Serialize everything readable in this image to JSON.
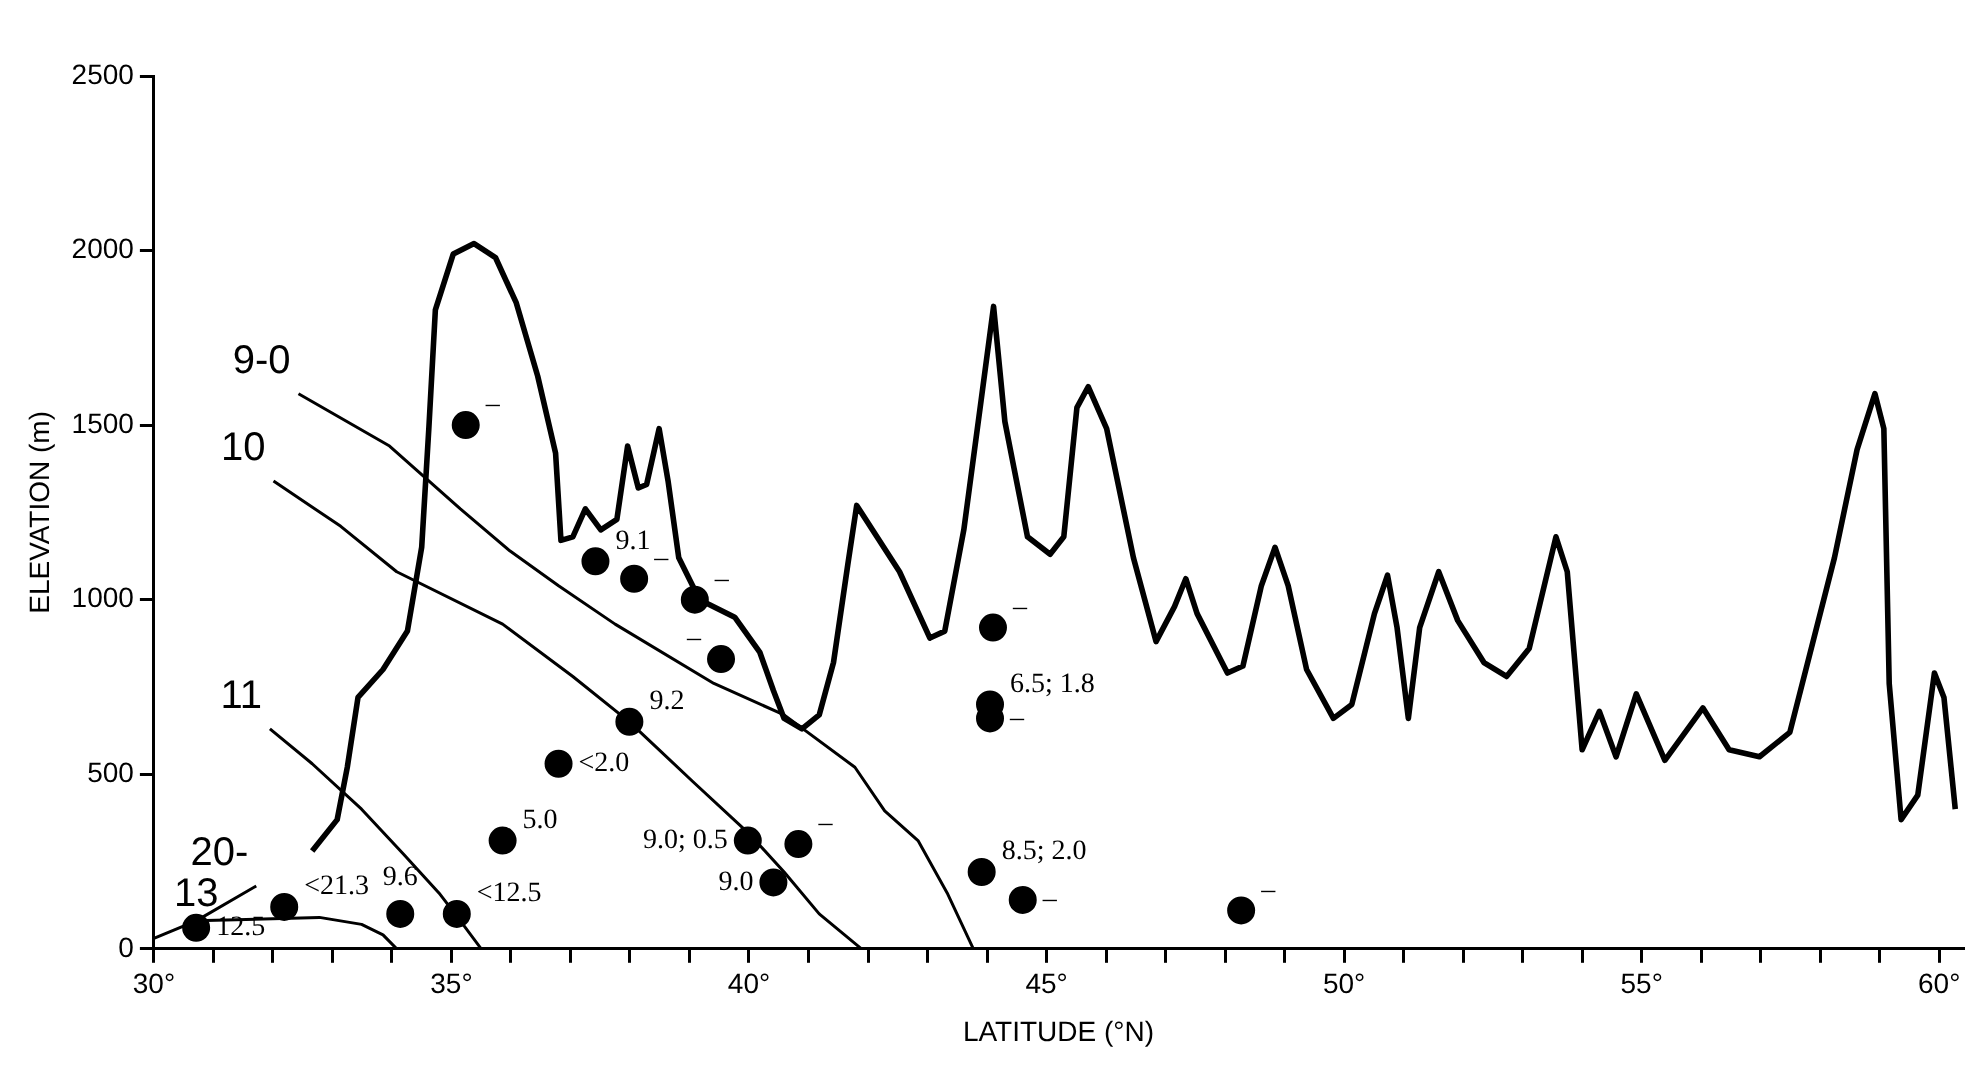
{
  "chart_data": {
    "type": "line",
    "xlabel": "LATITUDE (°N)",
    "ylabel": "ELEVATION (m)",
    "xlim": [
      30,
      60.4
    ],
    "xticks": [
      {
        "value": 30,
        "label": "30°"
      },
      {
        "value": 31,
        "label": null
      },
      {
        "value": 32,
        "label": null
      },
      {
        "value": 33,
        "label": null
      },
      {
        "value": 34,
        "label": null
      },
      {
        "value": 35,
        "label": "35°"
      },
      {
        "value": 36,
        "label": null
      },
      {
        "value": 37,
        "label": null
      },
      {
        "value": 38,
        "label": null
      },
      {
        "value": 39,
        "label": null
      },
      {
        "value": 40,
        "label": "40°"
      },
      {
        "value": 41,
        "label": null
      },
      {
        "value": 42,
        "label": null
      },
      {
        "value": 43,
        "label": null
      },
      {
        "value": 44,
        "label": null
      },
      {
        "value": 45,
        "label": "45°"
      },
      {
        "value": 46,
        "label": null
      },
      {
        "value": 47,
        "label": null
      },
      {
        "value": 48,
        "label": null
      },
      {
        "value": 49,
        "label": null
      },
      {
        "value": 50,
        "label": "50°"
      },
      {
        "value": 51,
        "label": null
      },
      {
        "value": 52,
        "label": null
      },
      {
        "value": 53,
        "label": null
      },
      {
        "value": 54,
        "label": null
      },
      {
        "value": 55,
        "label": "55°"
      },
      {
        "value": 56,
        "label": null
      },
      {
        "value": 57,
        "label": null
      },
      {
        "value": 58,
        "label": null
      },
      {
        "value": 59,
        "label": null
      },
      {
        "value": 60,
        "label": "60°"
      }
    ],
    "ylim": [
      0,
      2500
    ],
    "yticks": [
      0,
      500,
      1000,
      1500,
      2000,
      2500
    ],
    "grid": false,
    "legend": false,
    "series": [
      {
        "color": "#000000",
        "x": [
          32.66,
          33.08,
          33.25,
          33.43,
          33.85,
          34.26,
          34.5,
          34.62,
          34.73,
          35.03,
          35.38,
          35.74,
          36.09,
          36.45,
          36.75,
          36.84,
          37.04,
          37.25,
          37.51,
          37.78,
          37.96,
          38.14,
          38.28,
          38.49,
          38.64,
          38.82,
          39.17,
          39.76,
          40.18,
          40.41,
          40.59,
          40.89,
          41.18,
          41.42,
          41.66,
          41.81,
          42.53,
          43.04,
          43.29,
          43.61,
          43.9,
          44.11,
          44.3,
          44.68,
          45.06,
          45.29,
          45.51,
          45.7,
          46.01,
          46.46,
          46.84,
          47.15,
          47.34,
          47.53,
          48.04,
          48.3,
          48.61,
          48.84,
          49.06,
          49.37,
          49.82,
          50.13,
          50.51,
          50.73,
          50.89,
          51.08,
          51.27,
          51.59,
          51.91,
          52.35,
          52.73,
          53.11,
          53.56,
          53.75,
          54.0,
          54.29,
          54.57,
          54.91,
          55.39,
          56.03,
          56.47,
          56.98,
          57.49,
          58.24,
          58.62,
          58.92,
          59.07,
          59.16,
          59.36,
          59.64,
          59.92,
          60.08,
          60.27
        ],
        "values": [
          280,
          370,
          520,
          720,
          800,
          910,
          1150,
          1490,
          1830,
          1990,
          2020,
          1980,
          1850,
          1640,
          1420,
          1170,
          1180,
          1260,
          1200,
          1230,
          1440,
          1320,
          1330,
          1490,
          1340,
          1120,
          1000,
          950,
          850,
          740,
          660,
          630,
          670,
          820,
          1100,
          1270,
          1080,
          890,
          910,
          1200,
          1570,
          1840,
          1510,
          1180,
          1130,
          1180,
          1550,
          1610,
          1490,
          1120,
          880,
          980,
          1060,
          960,
          790,
          810,
          1040,
          1150,
          1040,
          800,
          660,
          700,
          960,
          1070,
          920,
          660,
          920,
          1080,
          940,
          820,
          780,
          860,
          1180,
          1080,
          570,
          680,
          550,
          730,
          540,
          690,
          570,
          550,
          620,
          1120,
          1430,
          1590,
          1490,
          760,
          370,
          440,
          790,
          720,
          400
        ]
      },
      {
        "name": "9-0",
        "color": "#000000",
        "x": [
          32.43,
          33.96,
          35.15,
          35.98,
          36.8,
          37.75,
          39.41,
          40.59,
          41.78,
          42.28,
          42.84,
          43.33,
          43.77
        ],
        "values": [
          1590,
          1440,
          1260,
          1140,
          1040,
          930,
          760,
          670,
          520,
          395,
          310,
          160,
          0
        ]
      },
      {
        "name": "10",
        "color": "#000000",
        "x": [
          32.01,
          33.14,
          34.08,
          35.86,
          37.04,
          37.99,
          39.05,
          40.0,
          40.59,
          41.18,
          41.89
        ],
        "values": [
          1340,
          1210,
          1080,
          930,
          780,
          650,
          480,
          330,
          220,
          100,
          0
        ]
      },
      {
        "name": "11",
        "color": "#000000",
        "x": [
          31.95,
          32.66,
          33.49,
          34.2,
          34.79,
          35.15,
          35.5
        ],
        "values": [
          630,
          530,
          400,
          270,
          160,
          80,
          0
        ]
      },
      {
        "name": "20-",
        "color": "#000000",
        "x": [
          31.72,
          30.71,
          30.0
        ],
        "values": [
          180,
          80,
          30
        ]
      },
      {
        "name": "13",
        "color": "#000000",
        "x": [
          30.71,
          32.78,
          33.49,
          33.85,
          34.08
        ],
        "values": [
          80,
          90,
          70,
          40,
          0
        ]
      },
      {
        "type": "scatter",
        "marker": "circle",
        "color": "#000000",
        "x": [
          30.71,
          32.19,
          34.14,
          35.09,
          35.86,
          36.8,
          37.99,
          39.98,
          40.83,
          40.41,
          35.24,
          37.42,
          38.07,
          39.09,
          39.53,
          44.05,
          44.05,
          44.1,
          43.91,
          44.6,
          48.27
        ],
        "values": [
          60,
          120,
          100,
          100,
          310,
          530,
          650,
          310,
          300,
          190,
          1500,
          1110,
          1060,
          1000,
          830,
          700,
          660,
          920,
          220,
          140,
          110
        ]
      }
    ],
    "annotations": [
      {
        "text": "12.5",
        "x": 30.71,
        "y": 60
      },
      {
        "text": "<21.3",
        "x": 32.19,
        "y": 120
      },
      {
        "text": "9.6",
        "x": 34.14,
        "y": 100
      },
      {
        "text": "<12.5",
        "x": 35.09,
        "y": 100
      },
      {
        "text": "5.0",
        "x": 35.86,
        "y": 310
      },
      {
        "text": "<2.0",
        "x": 36.8,
        "y": 530
      },
      {
        "text": "9.2",
        "x": 37.99,
        "y": 650
      },
      {
        "text": "9.0; 0.5",
        "x": 39.98,
        "y": 310
      },
      {
        "text": "–",
        "x": 40.83,
        "y": 300
      },
      {
        "text": "9.0",
        "x": 40.41,
        "y": 190
      },
      {
        "text": "–",
        "x": 35.24,
        "y": 1500
      },
      {
        "text": "9.1",
        "x": 37.42,
        "y": 1110
      },
      {
        "text": "–",
        "x": 38.07,
        "y": 1060
      },
      {
        "text": "–",
        "x": 39.09,
        "y": 1000
      },
      {
        "text": "–",
        "x": 39.53,
        "y": 830
      },
      {
        "text": "6.5; 1.8",
        "x": 44.05,
        "y": 700
      },
      {
        "text": "–",
        "x": 44.05,
        "y": 660
      },
      {
        "text": "–",
        "x": 44.1,
        "y": 920
      },
      {
        "text": "8.5; 2.0",
        "x": 43.91,
        "y": 220
      },
      {
        "text": "–",
        "x": 44.6,
        "y": 140
      },
      {
        "text": "–",
        "x": 48.27,
        "y": 110
      }
    ]
  }
}
